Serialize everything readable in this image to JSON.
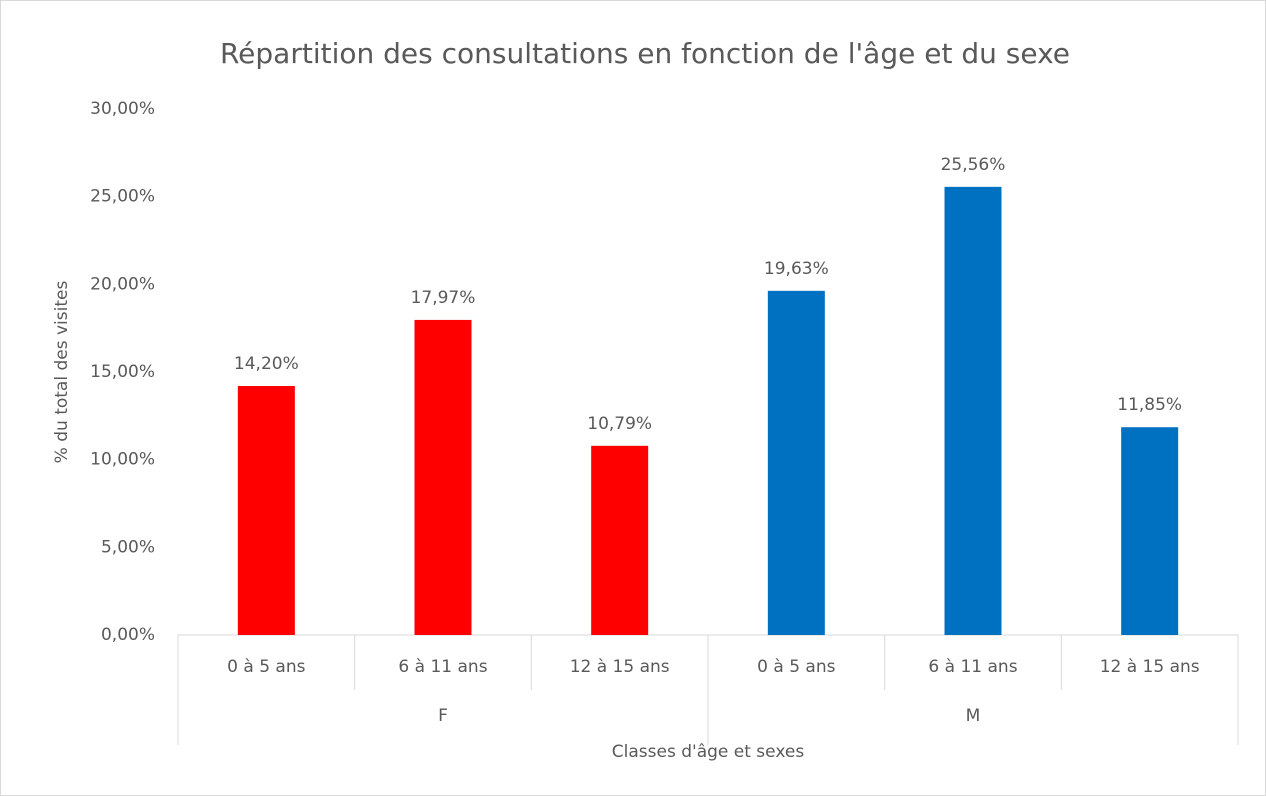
{
  "chart_data": {
    "type": "bar",
    "title": "Répartition des consultations en fonction de l'âge et du sexe",
    "x_label": "Classes d'âge et sexes",
    "y_label": "% du total des visites",
    "categories": [
      "0 à 5 ans",
      "6 à 11 ans",
      "12 à 15 ans",
      "0 à 5 ans",
      "6 à 11 ans",
      "12 à 15 ans"
    ],
    "series": [
      {
        "name": "F",
        "color": "#ff0000",
        "values": [
          14.2,
          17.97,
          10.79,
          null,
          null,
          null
        ],
        "value_labels": [
          "14,20%",
          "17,97%",
          "10,79%",
          null,
          null,
          null
        ]
      },
      {
        "name": "M",
        "color": "#0070c0",
        "values": [
          null,
          null,
          null,
          19.63,
          25.56,
          11.85
        ],
        "value_labels": [
          null,
          null,
          null,
          "19,63%",
          "25,56%",
          "11,85%"
        ]
      }
    ],
    "ylim": [
      0,
      30
    ],
    "yticks": [
      {
        "value": 0,
        "label": "0,00%"
      },
      {
        "value": 5,
        "label": "5,00%"
      },
      {
        "value": 10,
        "label": "10,00%"
      },
      {
        "value": 15,
        "label": "15,00%"
      },
      {
        "value": 20,
        "label": "20,00%"
      },
      {
        "value": 25,
        "label": "25,00%"
      },
      {
        "value": 30,
        "label": "30,00%"
      }
    ],
    "grid": false
  }
}
